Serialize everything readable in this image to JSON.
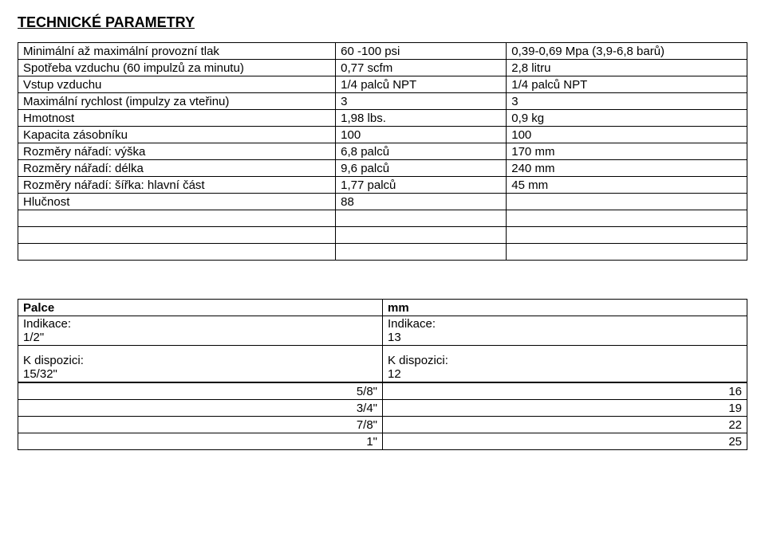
{
  "title": "TECHNICKÉ PARAMETRY",
  "specs": {
    "rows": [
      {
        "label": "Minimální až maximální provozní tlak",
        "v1": "60 -100 psi",
        "v2": "0,39-0,69 Mpa (3,9-6,8 barů)"
      },
      {
        "label": "Spotřeba vzduchu (60 impulzů za minutu)",
        "v1": "0,77 scfm",
        "v2": "2,8 litru"
      },
      {
        "label": "Vstup vzduchu",
        "v1": "1/4 palců NPT",
        "v2": "1/4 palců NPT"
      },
      {
        "label": "Maximální rychlost (impulzy za vteřinu)",
        "v1": "3",
        "v2": "3"
      },
      {
        "label": "Hmotnost",
        "v1": "1,98 lbs.",
        "v2": "0,9 kg"
      },
      {
        "label": "Kapacita zásobníku",
        "v1": "100",
        "v2": "100"
      },
      {
        "label": "Rozměry nářadí: výška",
        "v1": "6,8 palců",
        "v2": "170 mm"
      },
      {
        "label": "Rozměry nářadí: délka",
        "v1": "9,6 palců",
        "v2": "240 mm"
      },
      {
        "label": "Rozměry nářadí: šířka: hlavní část",
        "v1": "1,77 palců",
        "v2": "45 mm"
      },
      {
        "label": "Hlučnost",
        "v1": "88",
        "v2": ""
      }
    ]
  },
  "units": {
    "left_header": "Palce",
    "right_header": "mm",
    "left_ind_label": "Indikace:",
    "left_ind_value": "1/2\"",
    "right_ind_label": "Indikace:",
    "right_ind_value": "13",
    "left_disp_label": "K dispozici:",
    "left_disp_value": "15/32\"",
    "right_disp_label": "K dispozici:",
    "right_disp_value": "12"
  },
  "conv": {
    "rows": [
      {
        "a": "5/8\"",
        "b": "16"
      },
      {
        "a": "3/4\"",
        "b": "19"
      },
      {
        "a": "7/8\"",
        "b": "22"
      },
      {
        "a": "1\"",
        "b": "25"
      }
    ]
  }
}
